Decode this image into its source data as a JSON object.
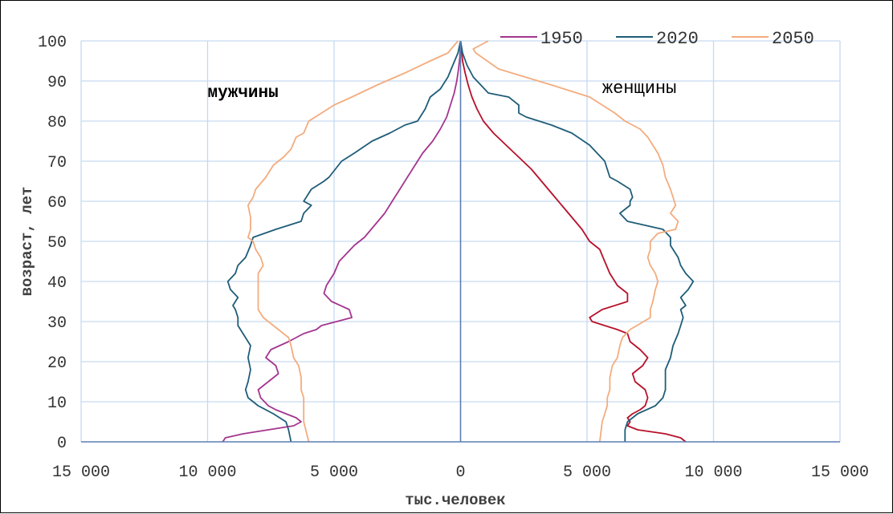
{
  "chart_data": {
    "type": "line",
    "title": "",
    "xlabel": "тыс.человек",
    "ylabel": "возраст, лет",
    "xlim": [
      -15000,
      15000
    ],
    "ylim": [
      0,
      100
    ],
    "x_ticks": [
      {
        "value": -15000,
        "label": "15 000"
      },
      {
        "value": -10000,
        "label": "10 000"
      },
      {
        "value": -5000,
        "label": "5 000"
      },
      {
        "value": 0,
        "label": "0"
      },
      {
        "value": 5000,
        "label": "5 000"
      },
      {
        "value": 10000,
        "label": "10 000"
      },
      {
        "value": 15000,
        "label": "15 000"
      }
    ],
    "y_ticks": [
      {
        "value": 0,
        "label": "0"
      },
      {
        "value": 10,
        "label": "10"
      },
      {
        "value": 20,
        "label": "20"
      },
      {
        "value": 30,
        "label": "30"
      },
      {
        "value": 40,
        "label": "40"
      },
      {
        "value": 50,
        "label": "50"
      },
      {
        "value": 60,
        "label": "60"
      },
      {
        "value": 70,
        "label": "70"
      },
      {
        "value": 80,
        "label": "80"
      },
      {
        "value": 90,
        "label": "90"
      },
      {
        "value": 100,
        "label": "100"
      }
    ],
    "grid": true,
    "legend_position": "top-right",
    "annotations": [
      {
        "text": "мужчины",
        "x": -10000,
        "y": 86,
        "style": "bold"
      },
      {
        "text": "женщины",
        "x": 5600,
        "y": 87,
        "style": "plain"
      }
    ],
    "colors": {
      "axis": "#5b7fb5",
      "grid": "#c6d9f1",
      "male_1950": "#a4358f",
      "female_1950": "#b8102a"
    },
    "series": [
      {
        "name": "1950",
        "color": "#a4358f",
        "side": "male",
        "points": [
          [
            -9400,
            0
          ],
          [
            -9300,
            1
          ],
          [
            -8600,
            2
          ],
          [
            -7600,
            3
          ],
          [
            -6600,
            4
          ],
          [
            -6300,
            5
          ],
          [
            -6500,
            6
          ],
          [
            -6900,
            7
          ],
          [
            -7300,
            8
          ],
          [
            -7600,
            9
          ],
          [
            -7900,
            11
          ],
          [
            -8000,
            13
          ],
          [
            -7600,
            15
          ],
          [
            -7200,
            17
          ],
          [
            -7300,
            19
          ],
          [
            -7700,
            21
          ],
          [
            -7500,
            23
          ],
          [
            -6800,
            25
          ],
          [
            -6200,
            27
          ],
          [
            -5700,
            28
          ],
          [
            -5500,
            29
          ],
          [
            -4300,
            31
          ],
          [
            -4400,
            33
          ],
          [
            -5100,
            35
          ],
          [
            -5400,
            37
          ],
          [
            -5300,
            39
          ],
          [
            -5000,
            42
          ],
          [
            -4800,
            45
          ],
          [
            -4500,
            47
          ],
          [
            -4200,
            49
          ],
          [
            -3800,
            51
          ],
          [
            -3400,
            54
          ],
          [
            -3000,
            57
          ],
          [
            -2700,
            60
          ],
          [
            -2400,
            63
          ],
          [
            -2100,
            66
          ],
          [
            -1800,
            69
          ],
          [
            -1500,
            72
          ],
          [
            -1100,
            75
          ],
          [
            -800,
            78
          ],
          [
            -550,
            81
          ],
          [
            -400,
            84
          ],
          [
            -250,
            87
          ],
          [
            -150,
            90
          ],
          [
            -80,
            93
          ],
          [
            -30,
            96
          ],
          [
            0,
            100
          ]
        ]
      },
      {
        "name": "1950",
        "color": "#b8102a",
        "side": "female",
        "points": [
          [
            8900,
            0
          ],
          [
            8700,
            1
          ],
          [
            8100,
            2
          ],
          [
            7000,
            3
          ],
          [
            6600,
            4
          ],
          [
            6700,
            5
          ],
          [
            6600,
            6
          ],
          [
            6800,
            7
          ],
          [
            7100,
            8
          ],
          [
            7300,
            9
          ],
          [
            7400,
            11
          ],
          [
            7300,
            13
          ],
          [
            6900,
            15
          ],
          [
            6800,
            17
          ],
          [
            7200,
            19
          ],
          [
            7400,
            21
          ],
          [
            7100,
            23
          ],
          [
            6700,
            25
          ],
          [
            6600,
            27
          ],
          [
            6200,
            28
          ],
          [
            5200,
            30
          ],
          [
            5100,
            31
          ],
          [
            5600,
            33
          ],
          [
            6600,
            35
          ],
          [
            6600,
            37
          ],
          [
            6200,
            39
          ],
          [
            5900,
            42
          ],
          [
            5700,
            45
          ],
          [
            5500,
            48
          ],
          [
            5100,
            50
          ],
          [
            4800,
            53
          ],
          [
            4400,
            56
          ],
          [
            4000,
            59
          ],
          [
            3600,
            62
          ],
          [
            3200,
            65
          ],
          [
            2800,
            68
          ],
          [
            2300,
            71
          ],
          [
            1800,
            74
          ],
          [
            1300,
            77
          ],
          [
            900,
            80
          ],
          [
            650,
            83
          ],
          [
            450,
            86
          ],
          [
            300,
            89
          ],
          [
            180,
            92
          ],
          [
            80,
            95
          ],
          [
            0,
            100
          ]
        ]
      },
      {
        "name": "2020",
        "color": "#1f5d78",
        "side": "male",
        "points": [
          [
            -6700,
            0
          ],
          [
            -6800,
            3
          ],
          [
            -6900,
            5
          ],
          [
            -7400,
            7
          ],
          [
            -8000,
            9
          ],
          [
            -8400,
            11
          ],
          [
            -8500,
            13
          ],
          [
            -8400,
            15
          ],
          [
            -8300,
            18
          ],
          [
            -8400,
            21
          ],
          [
            -8300,
            24
          ],
          [
            -8600,
            27
          ],
          [
            -8800,
            29
          ],
          [
            -8800,
            31
          ],
          [
            -8900,
            33
          ],
          [
            -9000,
            34
          ],
          [
            -8800,
            36
          ],
          [
            -9100,
            38
          ],
          [
            -9200,
            40
          ],
          [
            -8900,
            42
          ],
          [
            -8800,
            44
          ],
          [
            -8500,
            46
          ],
          [
            -8300,
            49
          ],
          [
            -8200,
            51
          ],
          [
            -7300,
            53
          ],
          [
            -6300,
            55
          ],
          [
            -6200,
            57
          ],
          [
            -5900,
            59
          ],
          [
            -6200,
            60
          ],
          [
            -5900,
            63
          ],
          [
            -5400,
            65
          ],
          [
            -5200,
            66
          ],
          [
            -4700,
            70
          ],
          [
            -4200,
            72
          ],
          [
            -3500,
            75
          ],
          [
            -2800,
            77
          ],
          [
            -2200,
            79
          ],
          [
            -1700,
            80
          ],
          [
            -1400,
            83
          ],
          [
            -1200,
            86
          ],
          [
            -800,
            88
          ],
          [
            -500,
            91
          ],
          [
            -300,
            94
          ],
          [
            -100,
            97
          ],
          [
            0,
            100
          ]
        ]
      },
      {
        "name": "2020",
        "color": "#1f5d78",
        "side": "female",
        "points": [
          [
            6500,
            0
          ],
          [
            6500,
            3
          ],
          [
            6600,
            5
          ],
          [
            7000,
            7
          ],
          [
            7700,
            9
          ],
          [
            8000,
            11
          ],
          [
            8100,
            13
          ],
          [
            8100,
            15
          ],
          [
            8100,
            18
          ],
          [
            8300,
            21
          ],
          [
            8400,
            24
          ],
          [
            8600,
            27
          ],
          [
            8700,
            29
          ],
          [
            8800,
            31
          ],
          [
            8700,
            33
          ],
          [
            8900,
            34
          ],
          [
            8700,
            36
          ],
          [
            9000,
            38
          ],
          [
            9200,
            40
          ],
          [
            8900,
            42
          ],
          [
            8700,
            44
          ],
          [
            8600,
            46
          ],
          [
            8300,
            49
          ],
          [
            8300,
            51
          ],
          [
            8000,
            53
          ],
          [
            6600,
            55
          ],
          [
            6300,
            57
          ],
          [
            6700,
            59
          ],
          [
            6700,
            60
          ],
          [
            6800,
            61
          ],
          [
            6700,
            63
          ],
          [
            6200,
            65
          ],
          [
            5900,
            66
          ],
          [
            5700,
            70
          ],
          [
            5400,
            72
          ],
          [
            5100,
            74
          ],
          [
            4400,
            77
          ],
          [
            3600,
            79
          ],
          [
            2600,
            81
          ],
          [
            2300,
            82
          ],
          [
            2300,
            84
          ],
          [
            1900,
            86
          ],
          [
            1100,
            87
          ],
          [
            800,
            89
          ],
          [
            500,
            91
          ],
          [
            250,
            94
          ],
          [
            80,
            97
          ],
          [
            0,
            100
          ]
        ]
      },
      {
        "name": "2050",
        "color": "#f3ac7e",
        "side": "male",
        "points": [
          [
            -6000,
            0
          ],
          [
            -6200,
            5
          ],
          [
            -6200,
            9
          ],
          [
            -6200,
            11
          ],
          [
            -6300,
            13
          ],
          [
            -6300,
            16
          ],
          [
            -6400,
            19
          ],
          [
            -6600,
            21
          ],
          [
            -6700,
            24
          ],
          [
            -6800,
            26
          ],
          [
            -7200,
            28
          ],
          [
            -7800,
            31
          ],
          [
            -8000,
            33
          ],
          [
            -8000,
            35
          ],
          [
            -8000,
            38
          ],
          [
            -8000,
            40
          ],
          [
            -8000,
            42
          ],
          [
            -7800,
            44
          ],
          [
            -7900,
            46
          ],
          [
            -8100,
            48
          ],
          [
            -8200,
            50
          ],
          [
            -8400,
            51
          ],
          [
            -8300,
            53
          ],
          [
            -8300,
            56
          ],
          [
            -8400,
            59
          ],
          [
            -8200,
            61
          ],
          [
            -8100,
            63
          ],
          [
            -7700,
            66
          ],
          [
            -7400,
            69
          ],
          [
            -7000,
            71
          ],
          [
            -6700,
            73
          ],
          [
            -6500,
            76
          ],
          [
            -6200,
            77
          ],
          [
            -6000,
            80
          ],
          [
            -5500,
            82
          ],
          [
            -5000,
            84
          ],
          [
            -4300,
            86
          ],
          [
            -3300,
            89
          ],
          [
            -2200,
            92
          ],
          [
            -1200,
            95
          ],
          [
            -500,
            97
          ],
          [
            -100,
            100
          ]
        ]
      },
      {
        "name": "2050",
        "color": "#f3ac7e",
        "side": "female",
        "points": [
          [
            5500,
            0
          ],
          [
            5600,
            5
          ],
          [
            5800,
            9
          ],
          [
            5800,
            11
          ],
          [
            5900,
            13
          ],
          [
            5900,
            16
          ],
          [
            6000,
            19
          ],
          [
            6200,
            21
          ],
          [
            6300,
            24
          ],
          [
            6400,
            26
          ],
          [
            6700,
            28
          ],
          [
            7500,
            31
          ],
          [
            7500,
            33
          ],
          [
            7600,
            35
          ],
          [
            7700,
            38
          ],
          [
            7800,
            40
          ],
          [
            7700,
            42
          ],
          [
            7500,
            44
          ],
          [
            7400,
            46
          ],
          [
            7500,
            48
          ],
          [
            7500,
            50
          ],
          [
            7800,
            52
          ],
          [
            8500,
            53
          ],
          [
            8600,
            55
          ],
          [
            8300,
            57
          ],
          [
            8500,
            59
          ],
          [
            8400,
            61
          ],
          [
            8300,
            63
          ],
          [
            8100,
            66
          ],
          [
            8000,
            69
          ],
          [
            7800,
            72
          ],
          [
            7600,
            74
          ],
          [
            7400,
            76
          ],
          [
            7100,
            78
          ],
          [
            6500,
            80
          ],
          [
            6100,
            82
          ],
          [
            5600,
            84
          ],
          [
            5100,
            86
          ],
          [
            3600,
            89
          ],
          [
            1500,
            93
          ],
          [
            600,
            97
          ],
          [
            500,
            98
          ],
          [
            1100,
            100
          ]
        ]
      }
    ]
  }
}
